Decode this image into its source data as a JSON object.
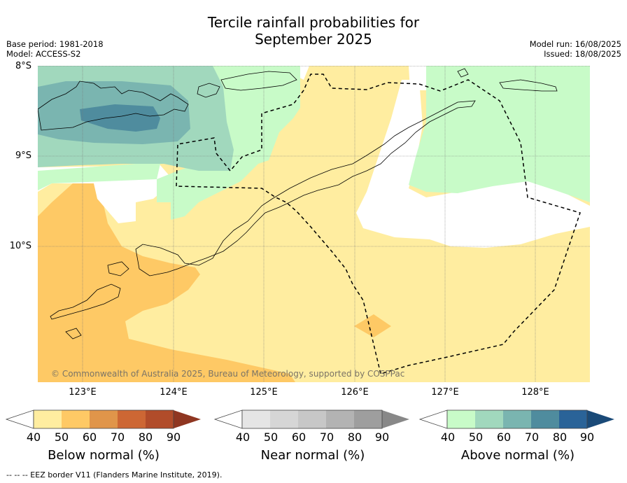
{
  "title_line1": "Tercile rainfall probabilities for",
  "title_line2": "September 2025",
  "meta_left": {
    "line1": "Base period: 1981-2018",
    "line2": "Model: ACCESS-S2"
  },
  "meta_right": {
    "line1": "Model run: 16/08/2025",
    "line2": "Issued: 18/08/2025"
  },
  "map": {
    "lat_labels": [
      "8°S",
      "9°S",
      "10°S"
    ],
    "lon_labels": [
      "123°E",
      "124°E",
      "125°E",
      "126°E",
      "127°E",
      "128°E"
    ],
    "copyright": "© Commonwealth of Australia 2025, Bureau of Meteorology, supported by COSPPac"
  },
  "colorbars": [
    {
      "title": "Below normal (%)",
      "ticks": [
        "40",
        "50",
        "60",
        "70",
        "80",
        "90"
      ],
      "colors": [
        "#ffffff",
        "#ffeda0",
        "#fec965",
        "#e0954a",
        "#cd6734",
        "#b14c2a",
        "#8f3621"
      ]
    },
    {
      "title": "Near normal (%)",
      "ticks": [
        "40",
        "50",
        "60",
        "70",
        "80",
        "90"
      ],
      "colors": [
        "#ffffff",
        "#e5e5e5",
        "#d6d6d6",
        "#c7c7c7",
        "#b3b3b3",
        "#9e9e9e",
        "#888888"
      ]
    },
    {
      "title": "Above normal (%)",
      "ticks": [
        "40",
        "50",
        "60",
        "70",
        "80",
        "90"
      ],
      "colors": [
        "#ffffff",
        "#c8fbc8",
        "#a1d8bd",
        "#7ab5b0",
        "#4f8c9e",
        "#2a6398",
        "#1a4a78"
      ]
    }
  ],
  "footnote": "--  --  -- EEZ border V11 (Flanders Marine Institute, 2019)."
}
